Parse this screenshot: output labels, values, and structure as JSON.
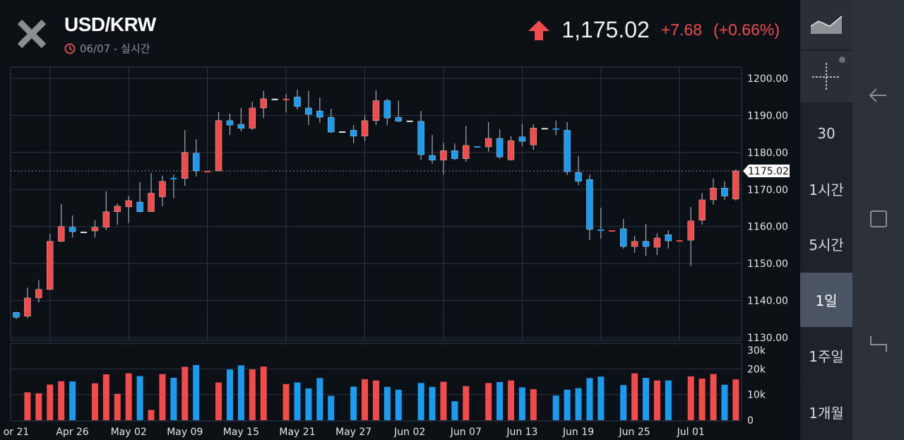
{
  "header": {
    "title": "USD/KRW",
    "subtitle": "06/07 - 실시간",
    "last_price": "1,175.02",
    "change": "+7.68",
    "change_pct": "(+0.66%)",
    "direction_icon": "arrow-up-icon"
  },
  "sidebar": {
    "chart_type_icon": "area-chart-icon",
    "crosshair_icon": "crosshair-icon",
    "intervals": [
      {
        "label": "30",
        "active": false
      },
      {
        "label": "1시간",
        "active": false
      },
      {
        "label": "5시간",
        "active": false
      },
      {
        "label": "1일",
        "active": true
      },
      {
        "label": "1주일",
        "active": false
      },
      {
        "label": "1개월",
        "active": false
      }
    ]
  },
  "navbar": {
    "icons": [
      "back-icon",
      "home-icon",
      "recents-icon"
    ]
  },
  "colors": {
    "up": "#f24b4b",
    "down": "#1a9bf0",
    "neutral": "#e6e6e6",
    "background": "#0b0f16",
    "grid": "#2a3744"
  },
  "chart_data": {
    "type": "candlestick",
    "ylim": [
      1130,
      1200
    ],
    "yticks": [
      "1200.00",
      "1190.00",
      "1180.00",
      "1170.00",
      "1160.00",
      "1150.00",
      "1140.00",
      "1130.00"
    ],
    "volume_ylim": [
      0,
      30
    ],
    "volume_ticks": [
      "30k",
      "20k",
      "10k",
      "0"
    ],
    "last_value_label": "1175.02",
    "last_value": 1175.02,
    "grid": true,
    "x_labels": [
      {
        "label": "or 21",
        "index": 0
      },
      {
        "label": "Apr 26",
        "index": 5
      },
      {
        "label": "May 02",
        "index": 10
      },
      {
        "label": "May 09",
        "index": 15
      },
      {
        "label": "May 15",
        "index": 20
      },
      {
        "label": "May 21",
        "index": 25
      },
      {
        "label": "May 27",
        "index": 30
      },
      {
        "label": "Jun 02",
        "index": 35
      },
      {
        "label": "Jun 07",
        "index": 40
      },
      {
        "label": "Jun 13",
        "index": 45
      },
      {
        "label": "Jun 19",
        "index": 50
      },
      {
        "label": "Jun 25",
        "index": 55
      },
      {
        "label": "Jul 01",
        "index": 60
      }
    ],
    "candle_fields": [
      "open",
      "high",
      "low",
      "close",
      "volume_k",
      "color"
    ],
    "candles": [
      [
        1136.8,
        1137,
        1135,
        1135.5,
        null,
        "d"
      ],
      [
        1135.8,
        1143.5,
        1135.3,
        1140.7,
        10.9,
        "u"
      ],
      [
        1140.7,
        1145.5,
        1139.5,
        1143,
        10.5,
        "u"
      ],
      [
        1143,
        1158,
        1142.8,
        1156,
        13.9,
        "u"
      ],
      [
        1156,
        1166,
        1155.8,
        1160,
        15.2,
        "u"
      ],
      [
        1159.8,
        1163,
        1157,
        1158.6,
        15.1,
        "d"
      ],
      [
        1158.6,
        1158.6,
        1158.6,
        1158.6,
        null,
        "n"
      ],
      [
        1158.8,
        1161.7,
        1157,
        1159.8,
        14.4,
        "u"
      ],
      [
        1159.8,
        1169.5,
        1159,
        1164,
        17.9,
        "u"
      ],
      [
        1164,
        1166.2,
        1160.5,
        1165.5,
        10.3,
        "u"
      ],
      [
        1165.3,
        1168.2,
        1161,
        1167,
        18.3,
        "u"
      ],
      [
        1166.6,
        1172,
        1163.8,
        1164,
        17.2,
        "d"
      ],
      [
        1164,
        1174.4,
        1164,
        1169,
        4.0,
        "u"
      ],
      [
        1168,
        1173.7,
        1165.5,
        1172.2,
        18.0,
        "u"
      ],
      [
        1173.1,
        1174,
        1167.6,
        1173.1,
        16.5,
        "d"
      ],
      [
        1173,
        1186,
        1171,
        1180,
        20.8,
        "u"
      ],
      [
        1179.8,
        1183.6,
        1173.5,
        1175,
        21.5,
        "d"
      ],
      [
        1175,
        1175,
        1175,
        1175,
        null,
        "u"
      ],
      [
        1175,
        1191,
        1175,
        1188.6,
        14.7,
        "u"
      ],
      [
        1188.6,
        1190.5,
        1184.7,
        1187.4,
        19.8,
        "d"
      ],
      [
        1187.6,
        1192,
        1185.7,
        1186.5,
        21.4,
        "d"
      ],
      [
        1186.5,
        1193.7,
        1186,
        1192,
        19.8,
        "u"
      ],
      [
        1192,
        1196.6,
        1189.3,
        1194.5,
        20.9,
        "u"
      ],
      [
        1194.5,
        1194.5,
        1194.5,
        1194.5,
        null,
        "n"
      ],
      [
        1194.5,
        1195.8,
        1190.8,
        1194.5,
        14.1,
        "u"
      ],
      [
        1195,
        1197,
        1191.6,
        1192.4,
        14.7,
        "d"
      ],
      [
        1192,
        1196.6,
        1187.4,
        1190.3,
        12.4,
        "d"
      ],
      [
        1191.2,
        1194.8,
        1188,
        1189.5,
        16.4,
        "d"
      ],
      [
        1189.5,
        1191.8,
        1185.3,
        1185.5,
        9.5,
        "d"
      ],
      [
        1185.7,
        1185.7,
        1185.7,
        1185.7,
        null,
        "n"
      ],
      [
        1186,
        1187.4,
        1182.5,
        1184.4,
        13.1,
        "d"
      ],
      [
        1184.4,
        1190,
        1183,
        1188.6,
        16.0,
        "u"
      ],
      [
        1188.6,
        1196.8,
        1187.4,
        1194,
        15.5,
        "u"
      ],
      [
        1194,
        1194.5,
        1187.4,
        1189.3,
        13.0,
        "d"
      ],
      [
        1189.5,
        1194,
        1188.2,
        1188.4,
        11.9,
        "d"
      ],
      [
        1188.6,
        1188.6,
        1188.6,
        1188.6,
        null,
        "n"
      ],
      [
        1188.4,
        1191.2,
        1178,
        1179.4,
        14.5,
        "d"
      ],
      [
        1179.2,
        1184.7,
        1177,
        1177.9,
        13.0,
        "d"
      ],
      [
        1177.9,
        1182.6,
        1174,
        1180.5,
        15.0,
        "u"
      ],
      [
        1180.5,
        1182.4,
        1177.9,
        1178.3,
        7.4,
        "d"
      ],
      [
        1178.3,
        1187.2,
        1177.5,
        1181.9,
        13.3,
        "u"
      ],
      [
        1181.7,
        1181.7,
        1181.7,
        1181.7,
        null,
        "d"
      ],
      [
        1181.5,
        1188.2,
        1180.2,
        1183.8,
        14.5,
        "u"
      ],
      [
        1183.8,
        1186.3,
        1178.3,
        1178.8,
        14.9,
        "d"
      ],
      [
        1178,
        1184.4,
        1177.8,
        1183.2,
        15.5,
        "u"
      ],
      [
        1184.2,
        1187.8,
        1181.7,
        1183,
        12.8,
        "d"
      ],
      [
        1182,
        1187.6,
        1180.7,
        1186.6,
        12.1,
        "u"
      ],
      [
        1186.6,
        1186.6,
        1186.6,
        1186.6,
        null,
        "n"
      ],
      [
        1186.5,
        1188.6,
        1184.7,
        1186.5,
        9.6,
        "d"
      ],
      [
        1186,
        1188.2,
        1173.9,
        1174.8,
        11.9,
        "d"
      ],
      [
        1174.6,
        1179,
        1171.2,
        1172.2,
        12.5,
        "d"
      ],
      [
        1172.7,
        1174,
        1156.3,
        1159.2,
        16.4,
        "d"
      ],
      [
        1159.2,
        1165.1,
        1156.7,
        1159.2,
        17.0,
        "d"
      ],
      [
        1159,
        1159,
        1159,
        1159,
        null,
        "u"
      ],
      [
        1159.4,
        1162,
        1154,
        1154.6,
        13.7,
        "d"
      ],
      [
        1154.6,
        1157.5,
        1152.9,
        1156,
        18.3,
        "u"
      ],
      [
        1156,
        1160.7,
        1152.1,
        1154.6,
        16.5,
        "d"
      ],
      [
        1154.4,
        1158.2,
        1152.3,
        1156.9,
        15.5,
        "u"
      ],
      [
        1157.8,
        1159,
        1154,
        1156.1,
        15.5,
        "d"
      ],
      [
        1156.3,
        1156.3,
        1156.3,
        1156.3,
        null,
        "u"
      ],
      [
        1156.3,
        1165.3,
        1149.3,
        1161.5,
        17.1,
        "u"
      ],
      [
        1161.7,
        1169,
        1160.5,
        1167.2,
        16.2,
        "u"
      ],
      [
        1167.2,
        1173,
        1165.9,
        1170.4,
        18.0,
        "u"
      ],
      [
        1170.4,
        1172.2,
        1167.2,
        1168.2,
        13.8,
        "d"
      ],
      [
        1167.4,
        1175.4,
        1167,
        1175.02,
        15.9,
        "u"
      ]
    ]
  }
}
